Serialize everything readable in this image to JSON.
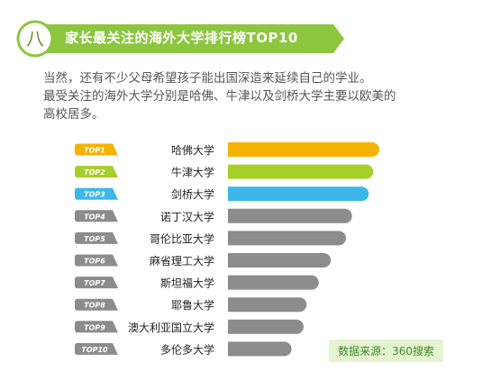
{
  "header": {
    "section_numeral": "八",
    "title": "家长最关注的海外大学排行榜TOP10"
  },
  "intro": {
    "line1": "当然，还有不少父母希望孩子能出国深造来延续自己的学业。",
    "line2": "最受关注的海外大学分别是哈佛、牛津以及剑桥大学主要以欧美的",
    "line3": "高校居多。"
  },
  "chart_data": {
    "type": "bar",
    "orientation": "horizontal",
    "categories": [
      "哈佛大学",
      "牛津大学",
      "剑桥大学",
      "诺丁汉大学",
      "哥伦比亚大学",
      "麻省理工大学",
      "斯坦福大学",
      "耶鲁大学",
      "澳大利亚国立大学",
      "多伦多大学"
    ],
    "rank_labels": [
      "TOP1",
      "TOP2",
      "TOP3",
      "TOP4",
      "TOP5",
      "TOP6",
      "TOP7",
      "TOP8",
      "TOP9",
      "TOP10"
    ],
    "values": [
      100,
      96,
      93,
      82,
      78,
      68,
      60,
      52,
      50,
      42
    ],
    "value_scale": "relative (no axis printed)",
    "colors": [
      "#f5b300",
      "#a6cf2a",
      "#3db7ea",
      "#8c8c8c",
      "#8c8c8c",
      "#8c8c8c",
      "#8c8c8c",
      "#8c8c8c",
      "#8c8c8c",
      "#8c8c8c"
    ],
    "grid": false
  },
  "source": "数据来源：360搜索",
  "colors": {
    "banner": "#8cc63f",
    "text": "#555555"
  }
}
